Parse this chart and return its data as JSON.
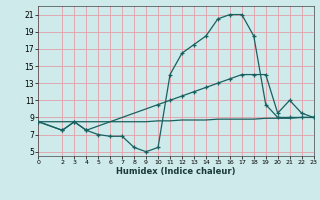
{
  "xlabel": "Humidex (Indice chaleur)",
  "xlim": [
    0,
    23
  ],
  "ylim": [
    4.5,
    22
  ],
  "xtick_vals": [
    0,
    2,
    3,
    4,
    5,
    6,
    7,
    8,
    9,
    10,
    11,
    12,
    13,
    14,
    15,
    16,
    17,
    18,
    19,
    20,
    21,
    22,
    23
  ],
  "ytick_vals": [
    5,
    7,
    9,
    11,
    13,
    15,
    17,
    19,
    21
  ],
  "bg_color": "#ceeaea",
  "grid_color": "#e0a8b0",
  "line_color": "#1a6060",
  "curve1_x": [
    0,
    2,
    3,
    4,
    5,
    6,
    7,
    8,
    9,
    10,
    11,
    12,
    13,
    14,
    15,
    16,
    17,
    18,
    19,
    20,
    21,
    22,
    23
  ],
  "curve1_y": [
    8.5,
    7.5,
    8.5,
    7.5,
    7.0,
    6.8,
    6.8,
    5.5,
    5.0,
    5.5,
    14.0,
    16.5,
    17.5,
    18.5,
    20.5,
    21.0,
    21.0,
    18.5,
    10.5,
    9.0,
    9.0,
    9.0,
    9.0
  ],
  "curve2_x": [
    0,
    2,
    3,
    4,
    10,
    11,
    12,
    13,
    14,
    15,
    16,
    17,
    18,
    19,
    20,
    21,
    22,
    23
  ],
  "curve2_y": [
    8.5,
    7.5,
    8.5,
    7.5,
    10.5,
    11.0,
    11.5,
    12.0,
    12.5,
    13.0,
    13.5,
    14.0,
    14.0,
    14.0,
    9.5,
    11.0,
    9.5,
    9.0
  ],
  "curve3_x": [
    0,
    2,
    3,
    4,
    5,
    6,
    7,
    8,
    9,
    10,
    11,
    12,
    13,
    14,
    15,
    16,
    17,
    18,
    19,
    20,
    21,
    22,
    23
  ],
  "curve3_y": [
    8.5,
    8.5,
    8.5,
    8.5,
    8.5,
    8.5,
    8.5,
    8.5,
    8.5,
    8.6,
    8.6,
    8.7,
    8.7,
    8.7,
    8.8,
    8.8,
    8.8,
    8.8,
    8.9,
    8.9,
    8.9,
    9.0,
    9.0
  ]
}
